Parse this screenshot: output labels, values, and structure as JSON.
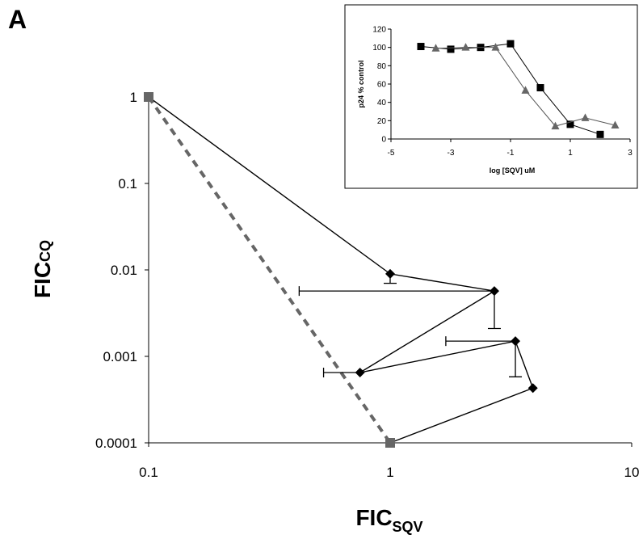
{
  "panel_label": "A",
  "chart_data": [
    {
      "type": "line",
      "scale": "log-log",
      "xlabel": {
        "main": "FIC",
        "sub": "SQV"
      },
      "ylabel": {
        "main": "FIC",
        "sub": "CQ"
      },
      "xlim": [
        0.1,
        10
      ],
      "ylim": [
        0.0001,
        1
      ],
      "x_ticks": [
        {
          "v": 0.1,
          "t": "0.1"
        },
        {
          "v": 1,
          "t": "1"
        },
        {
          "v": 10,
          "t": "10"
        }
      ],
      "y_ticks": [
        {
          "v": 0.0001,
          "t": "0.0001"
        },
        {
          "v": 0.001,
          "t": "0.001"
        },
        {
          "v": 0.01,
          "t": "0.01"
        },
        {
          "v": 0.1,
          "t": "0.1"
        },
        {
          "v": 1,
          "t": "1"
        }
      ],
      "series": [
        {
          "style": "solid-line-diamond",
          "color": "#000000",
          "points": [
            [
              0.1,
              1
            ],
            [
              1.0,
              0.009
            ],
            [
              2.7,
              0.0057
            ],
            [
              0.75,
              0.00065
            ],
            [
              3.3,
              0.0015
            ],
            [
              3.9,
              0.00043
            ],
            [
              1.0,
              0.0001
            ]
          ]
        },
        {
          "style": "dashed-line",
          "color": "#666666",
          "points": [
            [
              0.1,
              1
            ],
            [
              1.0,
              0.0001
            ]
          ]
        }
      ],
      "endpoint_markers": {
        "color": "#666666",
        "shape": "square",
        "points": [
          [
            0.1,
            1
          ],
          [
            1.0,
            0.0001
          ]
        ]
      },
      "error_bars": [
        {
          "x": 1.0,
          "y": 0.009,
          "dir": "y",
          "to": 0.007
        },
        {
          "x": 2.7,
          "y": 0.0057,
          "dir": "x",
          "to": 0.42
        },
        {
          "x": 2.7,
          "y": 0.0057,
          "dir": "y",
          "to": 0.0021
        },
        {
          "x": 0.75,
          "y": 0.00065,
          "dir": "x",
          "to": 0.53
        },
        {
          "x": 3.3,
          "y": 0.0015,
          "dir": "x",
          "to": 1.7
        },
        {
          "x": 3.3,
          "y": 0.0015,
          "dir": "y",
          "to": 0.00058
        }
      ]
    },
    {
      "type": "line",
      "xlabel": "log [SQV] uM",
      "ylabel": "p24 % control",
      "xlim": [
        -5,
        3
      ],
      "ylim": [
        0,
        120
      ],
      "x_ticks": [
        -5,
        -3,
        -1,
        1,
        3
      ],
      "y_ticks": [
        0,
        20,
        40,
        60,
        80,
        100,
        120
      ],
      "series": [
        {
          "marker": "square",
          "color": "#000000",
          "x": [
            -4,
            -3,
            -2,
            -1,
            0,
            1,
            2
          ],
          "y": [
            101,
            98,
            100,
            104,
            56,
            16,
            5
          ]
        },
        {
          "marker": "triangle",
          "color": "#666666",
          "x": [
            -3.5,
            -2.5,
            -1.5,
            -0.5,
            0.5,
            1.5,
            2.5
          ],
          "y": [
            99,
            100,
            100,
            53,
            14,
            23,
            15
          ]
        }
      ]
    }
  ]
}
